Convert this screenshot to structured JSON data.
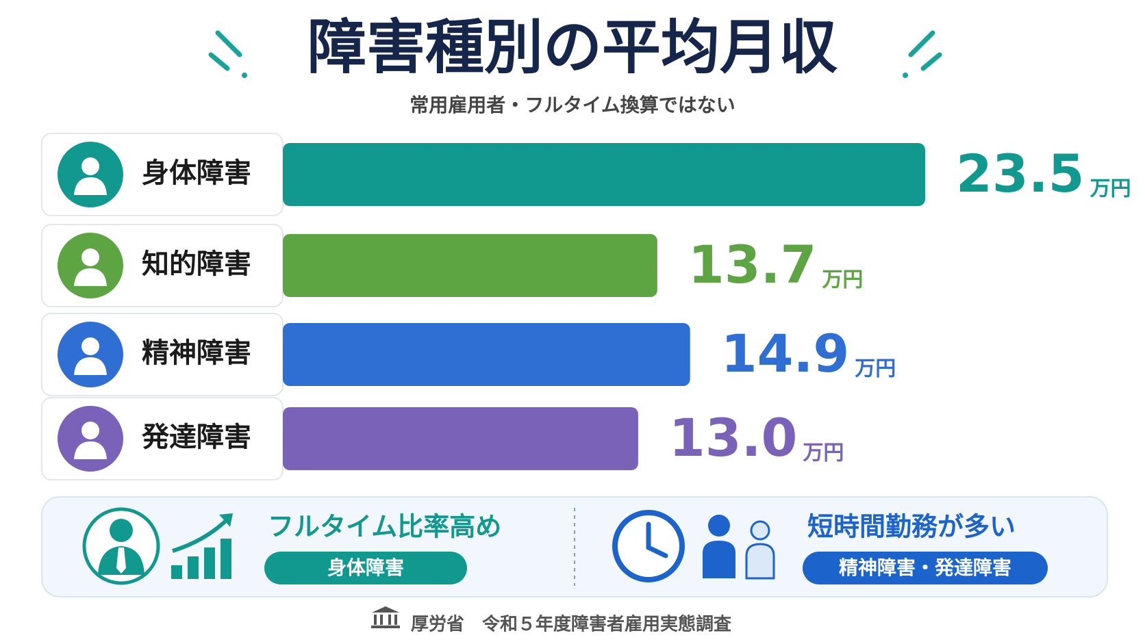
{
  "chart_data": {
    "type": "hbar",
    "title": "障害種別の平均月収",
    "subtitle": "常用雇用者・フルタイム換算ではない",
    "categories": [
      "身体障害",
      "知的障害",
      "精神障害",
      "発達障害"
    ],
    "values": [
      23.5,
      13.7,
      14.9,
      13.0
    ],
    "value_labels": [
      "23.5",
      "13.7",
      "14.9",
      "13.0"
    ],
    "unit": "万円",
    "colors": [
      "#12998f",
      "#5da443",
      "#2f6fd3",
      "#7a62b8"
    ],
    "annotations": [
      {
        "text": "フルタイム比率高め",
        "badge": "身体障害"
      },
      {
        "text": "短時間勤務が多い",
        "badge": "精神障害・発達障害"
      }
    ],
    "source": "厚労省　令和５年度障害者雇用実態調査"
  }
}
